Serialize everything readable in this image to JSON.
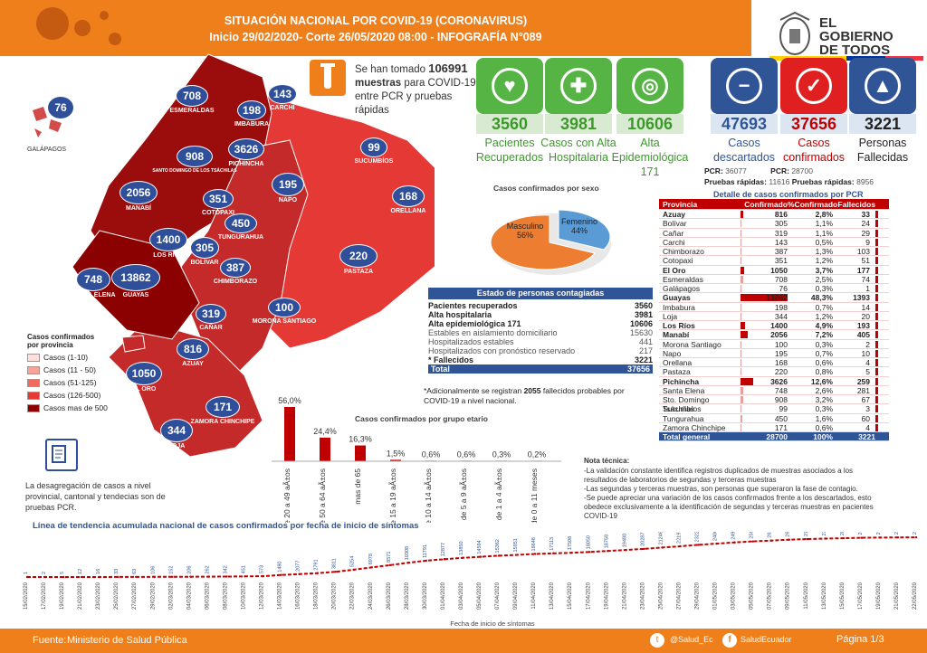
{
  "header": {
    "title": "SITUACIÓN NACIONAL POR  COVID-19 (CORONAVIRUS)",
    "subtitle": "Inicio 29/02/2020- Corte 26/05/2020 08:00  - INFOGRAFÍA N°089"
  },
  "gov": {
    "line1": "EL",
    "line2": "GOBIERNO",
    "line3": "DE TODOS"
  },
  "samples": {
    "pre": "Se han tomado",
    "number": "106991",
    "bold2": "muestras",
    "rest": "para COVID-19, entre PCR y pruebas rápidas"
  },
  "cards": [
    {
      "value": "3560",
      "label": "Pacientes Recuperados",
      "color": "#55b443",
      "textcolor": "#3a9a28"
    },
    {
      "value": "3981",
      "label": "Casos con Alta Hospitalaria",
      "color": "#55b443",
      "textcolor": "#3a9a28"
    },
    {
      "value": "10606",
      "label": "Alta Epidemiológica 171",
      "color": "#55b443",
      "textcolor": "#3a9a28"
    },
    {
      "value": "47693",
      "label": "Casos descartados",
      "color": "#2f5597",
      "textcolor": "#2f5597"
    },
    {
      "value": "37656",
      "label": "Casos confirmados",
      "color": "#e02020",
      "textcolor": "#c00000"
    },
    {
      "value": "3221",
      "label": "Personas Fallecidas",
      "color": "#2f5597",
      "textcolor": "#222"
    }
  ],
  "tests": {
    "pcr_label": "PCR:",
    "pcr_desc": "36077",
    "pcr_conf": "28700",
    "rap_label": "Pruebas rápidas:",
    "rap_desc": "11616",
    "rap_conf": "8956"
  },
  "map": {
    "provinces": [
      {
        "name": "GALÁPAGOS",
        "value": "76"
      },
      {
        "name": "ESMERALDAS",
        "value": "708"
      },
      {
        "name": "CARCHI",
        "value": "143"
      },
      {
        "name": "IMBABURA",
        "value": "198"
      },
      {
        "name": "PICHINCHA",
        "value": "3626"
      },
      {
        "name": "SANTO DOMINGO DE LOS TSÁCHILAS",
        "value": "908"
      },
      {
        "name": "SUCUMBÍOS",
        "value": "99"
      },
      {
        "name": "MANABÍ",
        "value": "2056"
      },
      {
        "name": "NAPO",
        "value": "195"
      },
      {
        "name": "ORELLANA",
        "value": "168"
      },
      {
        "name": "COTOPAXI",
        "value": "351"
      },
      {
        "name": "TUNGURAHUA",
        "value": "450"
      },
      {
        "name": "LOS RÍOS",
        "value": "1400"
      },
      {
        "name": "BOLÍVAR",
        "value": "305"
      },
      {
        "name": "SANTA ELENA",
        "value": "748"
      },
      {
        "name": "GUAYAS",
        "value": "13862"
      },
      {
        "name": "CHIMBORAZO",
        "value": "387"
      },
      {
        "name": "PASTAZA",
        "value": "220"
      },
      {
        "name": "CAÑAR",
        "value": "319"
      },
      {
        "name": "MORONA SANTIAGO",
        "value": "100"
      },
      {
        "name": "AZUAY",
        "value": "816"
      },
      {
        "name": "EL ORO",
        "value": "1050"
      },
      {
        "name": "ZAMORA CHINCHIPE",
        "value": "171"
      },
      {
        "name": "LOJA",
        "value": "344"
      }
    ],
    "legend_title": "Casos confirmados por provincia",
    "legend": [
      {
        "label": "Casos (1-10)",
        "color": "#fde0dc"
      },
      {
        "label": "Casos (11 - 50)",
        "color": "#f7a39a"
      },
      {
        "label": "Casos (51-125)",
        "color": "#f06a5d"
      },
      {
        "label": "Casos (126-500)",
        "color": "#e53935"
      },
      {
        "label": "Casos mas de 500",
        "color": "#8b0000"
      }
    ],
    "note": "La desagregación de casos a nivel provincial, cantonal y tendecias son de pruebas PCR."
  },
  "sex": {
    "title": "Casos confirmados por sexo",
    "male_label": "Masculino",
    "male_pct": "56%",
    "female_label": "Femenino",
    "female_pct": "44%"
  },
  "status": {
    "title": "Estado de personas contagiadas",
    "rows": [
      {
        "k": "Pacientes recuperados",
        "v": "3560",
        "bold": true
      },
      {
        "k": "Alta hospitalaria",
        "v": "3981",
        "bold": true
      },
      {
        "k": "Alta epidemiológica 171",
        "v": "10606",
        "bold": true
      },
      {
        "k": "Estables en aislamiento domiciliario",
        "v": "15630",
        "bold": false
      },
      {
        "k": "Hospitalizados estables",
        "v": "441",
        "bold": false
      },
      {
        "k": "Hospitalizados con pronóstico reservado",
        "v": "217",
        "bold": false
      },
      {
        "k": "* Fallecidos",
        "v": "3221",
        "bold": true
      }
    ],
    "total_label": "Total",
    "total": "37656",
    "note_pre": "*Adicionalmente se registran",
    "note_num": "2055",
    "note_post": "fallecidos probables por COVID-19 a nivel nacional."
  },
  "age": {
    "title": "Casos confirmados por grupo etario",
    "groups": [
      {
        "label": "de 20 a 49 aÃ±os",
        "pct": "56,0%",
        "value": 56.0
      },
      {
        "label": "de 50 a 64 aÃ±os",
        "pct": "24,4%",
        "value": 24.4
      },
      {
        "label": "mas de 65",
        "pct": "16,3%",
        "value": 16.3
      },
      {
        "label": "de 15 a 19 aÃ±os",
        "pct": "1,5%",
        "value": 1.5
      },
      {
        "label": "de 10 a 14 aÃ±os",
        "pct": "0,6%",
        "value": 0.6
      },
      {
        "label": "de 5 a 9 aÃ±os",
        "pct": "0,6%",
        "value": 0.6
      },
      {
        "label": "de 1 a 4 aÃ±os",
        "pct": "0,3%",
        "value": 0.3
      },
      {
        "label": "de 0 a 11 meses",
        "pct": "0,2%",
        "value": 0.2
      }
    ]
  },
  "table": {
    "title": "Detalle de casos confirmados por PCR",
    "headers": [
      "Provincia",
      "Confirmado",
      "%Confirmado",
      "Fallecidos"
    ],
    "rows": [
      [
        "Azuay",
        "816",
        "2,8%",
        "33",
        true
      ],
      [
        "Bolívar",
        "305",
        "1,1%",
        "24",
        false
      ],
      [
        "Cañar",
        "319",
        "1,1%",
        "29",
        false
      ],
      [
        "Carchi",
        "143",
        "0,5%",
        "9",
        false
      ],
      [
        "Chimborazo",
        "387",
        "1,3%",
        "103",
        false
      ],
      [
        "Cotopaxi",
        "351",
        "1,2%",
        "51",
        false
      ],
      [
        "El Oro",
        "1050",
        "3,7%",
        "177",
        true
      ],
      [
        "Esmeraldas",
        "708",
        "2,5%",
        "74",
        false
      ],
      [
        "Galápagos",
        "76",
        "0,3%",
        "1",
        false
      ],
      [
        "Guayas",
        "13862",
        "48,3%",
        "1393",
        true
      ],
      [
        "Imbabura",
        "198",
        "0,7%",
        "14",
        false
      ],
      [
        "Loja",
        "344",
        "1,2%",
        "20",
        false
      ],
      [
        "Los Ríos",
        "1400",
        "4,9%",
        "193",
        true
      ],
      [
        "Manabí",
        "2056",
        "7,2%",
        "405",
        true
      ],
      [
        "Morona Santiago",
        "100",
        "0,3%",
        "2",
        false
      ],
      [
        "Napo",
        "195",
        "0,7%",
        "10",
        false
      ],
      [
        "Orellana",
        "168",
        "0,6%",
        "4",
        false
      ],
      [
        "Pastaza",
        "220",
        "0,8%",
        "5",
        false
      ],
      [
        "Pichincha",
        "3626",
        "12,6%",
        "259",
        true
      ],
      [
        "Santa Elena",
        "748",
        "2,6%",
        "281",
        false
      ],
      [
        "Sto. Domingo Tsáchilas",
        "908",
        "3,2%",
        "67",
        false
      ],
      [
        "Sucumbíos",
        "99",
        "0,3%",
        "3",
        false
      ],
      [
        "Tungurahua",
        "450",
        "1,6%",
        "60",
        false
      ],
      [
        "Zamora Chinchipe",
        "171",
        "0,6%",
        "4",
        false
      ]
    ],
    "total": [
      "Total general",
      "28700",
      "100%",
      "3221"
    ]
  },
  "nota": {
    "title": "Nota técnica:",
    "lines": [
      "-La validación constante identifica registros duplicados de muestras asociados a los resultados de laboratorios de segundas y terceras muestras",
      "-Las segundas y terceras muestras, son personas que superaron la fase de contagio.",
      "-Se puede apreciar una variación de los casos confirmados frente a los descartados, esto obedece exclusivamente a la identificación de segundas y terceras muestras en pacientes COVID-19"
    ]
  },
  "chart_data": {
    "type": "line",
    "title": "Línea de tendencia acumulada nacional de casos confirmados por fecha de inicio de síntomas",
    "xlabel": "Fecha de inicio de síntomas",
    "x": [
      "15/02/2020",
      "17/02/2020",
      "19/02/2020",
      "21/02/2020",
      "23/02/2020",
      "25/02/2020",
      "27/02/2020",
      "29/02/2020",
      "02/03/2020",
      "04/03/2020",
      "06/03/2020",
      "08/03/2020",
      "10/03/2020",
      "12/03/2020",
      "14/03/2020",
      "16/03/2020",
      "18/03/2020",
      "20/03/2020",
      "22/03/2020",
      "24/03/2020",
      "26/03/2020",
      "28/03/2020",
      "30/03/2020",
      "01/04/2020",
      "03/04/2020",
      "05/04/2020",
      "07/04/2020",
      "09/04/2020",
      "11/04/2020",
      "13/04/2020",
      "15/04/2020",
      "17/04/2020",
      "19/04/2020",
      "21/04/2020",
      "23/04/2020",
      "25/04/2020",
      "27/04/2020",
      "29/04/2020",
      "01/05/2020",
      "03/05/2020",
      "05/05/2020",
      "07/05/2020",
      "09/05/2020",
      "11/05/2020",
      "13/05/2020",
      "15/05/2020",
      "17/05/2020",
      "19/05/2020",
      "21/05/2020",
      "22/05/2020"
    ],
    "values": [
      1,
      2,
      5,
      12,
      16,
      33,
      63,
      106,
      152,
      206,
      262,
      342,
      451,
      573,
      1480,
      2077,
      2791,
      3811,
      5254,
      6978,
      8571,
      10308,
      11791,
      12877,
      13850,
      14594,
      15362,
      15951,
      16648,
      17113,
      17508,
      18050,
      18758,
      19480,
      20287,
      21246,
      22197,
      23221,
      24066,
      24967,
      25674,
      26289,
      26933,
      27374,
      27721,
      28003,
      28298,
      28450,
      28584,
      28638
    ],
    "ylim": [
      0,
      28700
    ]
  },
  "footer": {
    "source_label": "Fuente:",
    "source": "Ministerio de Salud Pública",
    "twitter": "@Salud_Ec",
    "facebook": "SaludEcuador",
    "page": "Página 1/3"
  }
}
